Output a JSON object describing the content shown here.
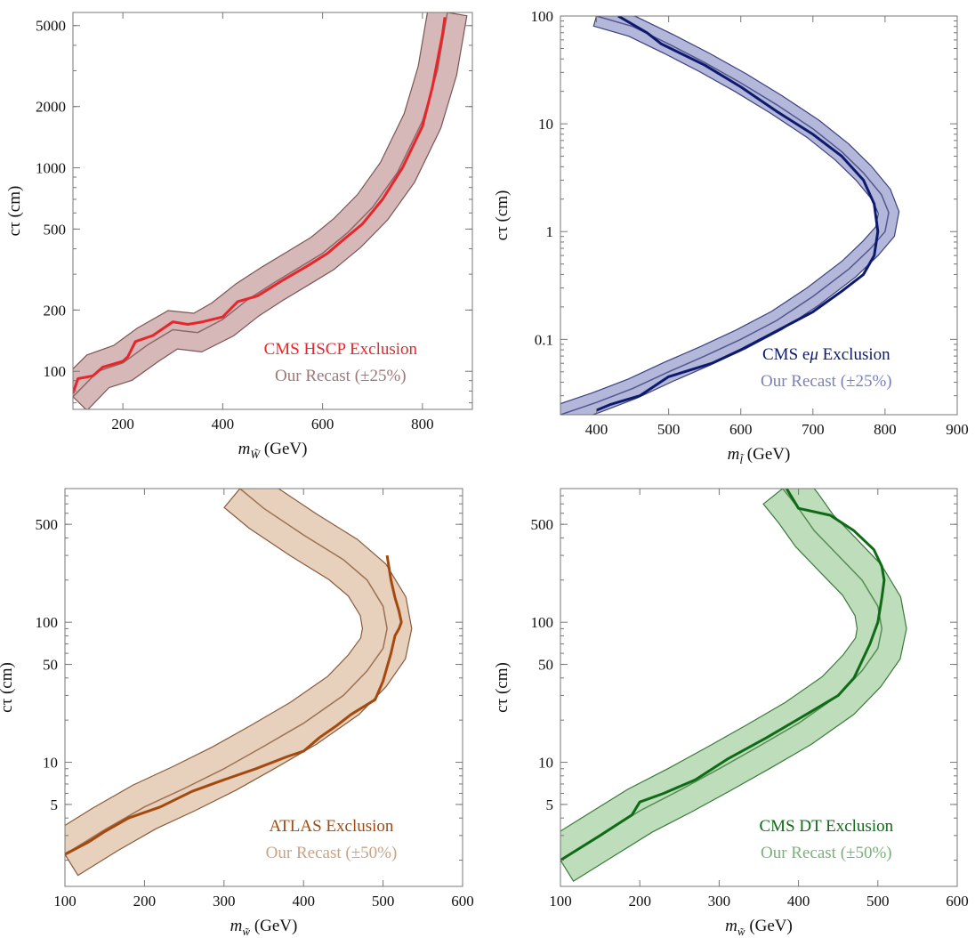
{
  "chart_data": [
    {
      "type": "line",
      "xlabel": "m_W̃ (GeV)",
      "xlabel_main": "m",
      "xlabel_sub": "W̃",
      "xlabel_unit": " (GeV)",
      "ylabel": "cτ (cm)",
      "yscale": "log",
      "xlim": [
        100,
        900
      ],
      "ylim": [
        65,
        5800
      ],
      "x_ticks": [
        200,
        400,
        600,
        800
      ],
      "y_ticks": [
        100,
        200,
        500,
        1000,
        2000,
        5000
      ],
      "legend": {
        "placement": "bottom-right",
        "entries": [
          "CMS HSCP Exclusion",
          "Our Recast (±25%)"
        ]
      },
      "colors": {
        "line": "#e8262a",
        "band_fill": "#c9a0a0",
        "band_edge": "#7a5555",
        "recast_text": "#9c7878"
      },
      "band_factor": 1.25,
      "series": [
        {
          "name": "CMS HSCP Exclusion",
          "role": "line",
          "x": [
            100,
            110,
            140,
            160,
            200,
            210,
            225,
            260,
            300,
            330,
            360,
            400,
            430,
            470,
            520,
            570,
            610,
            640,
            680,
            720,
            760,
            800,
            820,
            840,
            845
          ],
          "y": [
            78,
            92,
            95,
            105,
            112,
            118,
            140,
            150,
            175,
            170,
            175,
            185,
            220,
            235,
            280,
            330,
            380,
            440,
            530,
            700,
            1000,
            1600,
            2500,
            4500,
            5500
          ]
        },
        {
          "name": "Our Recast (±25%)",
          "role": "band",
          "x": [
            100,
            150,
            200,
            250,
            300,
            350,
            400,
            450,
            500,
            550,
            600,
            650,
            700,
            750,
            800,
            830,
            850
          ],
          "y": [
            75,
            100,
            110,
            135,
            160,
            155,
            180,
            225,
            270,
            320,
            380,
            480,
            640,
            950,
            1700,
            3000,
            5800
          ]
        }
      ]
    },
    {
      "type": "line",
      "xlabel": "m_l̃ (GeV)",
      "xlabel_main": "m",
      "xlabel_sub": "l̃",
      "xlabel_unit": " (GeV)",
      "ylabel": "cτ (cm)",
      "yscale": "log",
      "xlim": [
        350,
        900
      ],
      "ylim": [
        0.02,
        100
      ],
      "x_ticks": [
        400,
        500,
        600,
        700,
        800,
        900
      ],
      "y_ticks": [
        0.1,
        1,
        10,
        100
      ],
      "y_tick_labels": [
        "0.1",
        "1",
        "10",
        "100"
      ],
      "legend": {
        "placement": "bottom-right",
        "entries": [
          "CMS eμ Exclusion",
          "Our Recast (±25%)"
        ],
        "main_prefix": "CMS e",
        "main_mu": "μ",
        "main_suffix": " Exclusion"
      },
      "colors": {
        "line": "#0d1a6e",
        "band_fill": "#9a9fcc",
        "band_edge": "#3a3f80",
        "recast_text": "#7b80bb"
      },
      "band_factor": 1.25,
      "series": [
        {
          "name": "CMS eμ Exclusion",
          "role": "line",
          "x": [
            430,
            470,
            490,
            550,
            600,
            650,
            700,
            740,
            770,
            785,
            790,
            785,
            770,
            740,
            700,
            650,
            600,
            560,
            500,
            460,
            420,
            400
          ],
          "y": [
            100,
            70,
            55,
            35,
            22,
            13,
            8,
            5,
            3,
            1.8,
            1,
            0.6,
            0.4,
            0.28,
            0.18,
            0.12,
            0.08,
            0.06,
            0.045,
            0.03,
            0.025,
            0.022
          ]
        },
        {
          "name": "Our Recast (±25%)",
          "role": "band",
          "x": [
            400,
            450,
            500,
            550,
            600,
            650,
            700,
            740,
            770,
            795,
            805,
            800,
            780,
            750,
            700,
            650,
            600,
            550,
            500,
            450,
            400,
            350
          ],
          "y": [
            100,
            80,
            55,
            37,
            24,
            15,
            9,
            5.5,
            3.5,
            2.2,
            1.5,
            1,
            0.7,
            0.45,
            0.25,
            0.15,
            0.1,
            0.07,
            0.05,
            0.035,
            0.026,
            0.02
          ]
        }
      ]
    },
    {
      "type": "line",
      "xlabel": "m_w̃ (GeV)",
      "xlabel_main": "m",
      "xlabel_sub": "w̃",
      "xlabel_unit": " (GeV)",
      "ylabel": "cτ (cm)",
      "yscale": "log",
      "xlim": [
        100,
        600
      ],
      "ylim": [
        1.3,
        900
      ],
      "x_ticks": [
        100,
        200,
        300,
        400,
        500,
        600
      ],
      "y_ticks": [
        5,
        10,
        50,
        100,
        500
      ],
      "legend": {
        "placement": "bottom-right",
        "entries": [
          "ATLAS Exclusion",
          "Our Recast (±50%)"
        ]
      },
      "colors": {
        "line": "#a44a0e",
        "band_fill": "#dfc0a6",
        "band_edge": "#8a5a3a",
        "recast_text": "#c9a384"
      },
      "band_factor": 1.5,
      "series": [
        {
          "name": "ATLAS Exclusion",
          "role": "line",
          "x": [
            100,
            130,
            150,
            180,
            220,
            260,
            300,
            340,
            380,
            400,
            420,
            440,
            460,
            490,
            500,
            510,
            515,
            520,
            523,
            520,
            515,
            510,
            505
          ],
          "y": [
            2.2,
            2.7,
            3.2,
            4,
            4.8,
            6.2,
            7.5,
            9,
            11,
            12,
            15,
            18,
            22,
            28,
            38,
            60,
            80,
            90,
            100,
            120,
            150,
            200,
            300
          ]
        },
        {
          "name": "Our Recast (±50%)",
          "role": "band",
          "x": [
            100,
            150,
            200,
            250,
            300,
            350,
            400,
            450,
            480,
            500,
            505,
            500,
            480,
            450,
            400,
            350,
            320
          ],
          "y": [
            2.2,
            3.3,
            4.8,
            6.5,
            9,
            13,
            19,
            30,
            45,
            65,
            90,
            130,
            200,
            280,
            420,
            650,
            900
          ]
        }
      ]
    },
    {
      "type": "line",
      "xlabel": "m_w̃ (GeV)",
      "xlabel_main": "m",
      "xlabel_sub": "w̃",
      "xlabel_unit": " (GeV)",
      "ylabel": "cτ (cm)",
      "yscale": "log",
      "xlim": [
        100,
        600
      ],
      "ylim": [
        1.3,
        900
      ],
      "x_ticks": [
        100,
        200,
        300,
        400,
        500,
        600
      ],
      "y_ticks": [
        5,
        10,
        50,
        100,
        500
      ],
      "legend": {
        "placement": "bottom-right",
        "entries": [
          "CMS DT Exclusion",
          "Our Recast (±50%)"
        ]
      },
      "colors": {
        "line": "#0f6b16",
        "band_fill": "#a8d2a4",
        "band_edge": "#3a7a3a",
        "recast_text": "#7ab07a"
      },
      "band_factor": 1.5,
      "series": [
        {
          "name": "CMS DT Exclusion",
          "role": "line",
          "x": [
            100,
            150,
            190,
            200,
            230,
            270,
            310,
            360,
            410,
            450,
            470,
            490,
            500,
            505,
            508,
            505,
            495,
            470,
            440,
            400,
            385
          ],
          "y": [
            2,
            3,
            4.2,
            5.2,
            6,
            7.5,
            10.5,
            15,
            22,
            30,
            40,
            70,
            100,
            150,
            200,
            250,
            330,
            450,
            580,
            650,
            900
          ]
        },
        {
          "name": "Our Recast (±50%)",
          "role": "band",
          "x": [
            100,
            150,
            200,
            250,
            300,
            350,
            400,
            450,
            480,
            500,
            505,
            500,
            480,
            450,
            420,
            400,
            380
          ],
          "y": [
            2,
            3,
            4.5,
            6.3,
            9,
            13,
            19,
            30,
            45,
            65,
            90,
            130,
            200,
            300,
            450,
            650,
            900
          ]
        }
      ]
    }
  ]
}
